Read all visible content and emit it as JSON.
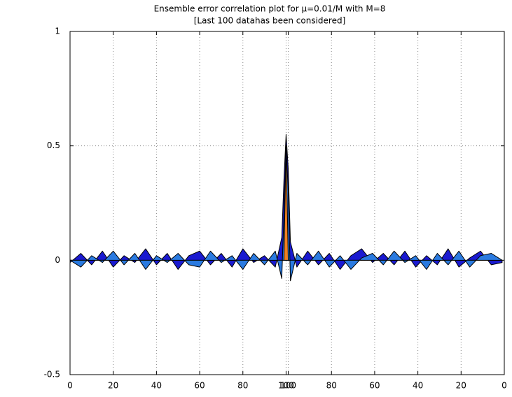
{
  "chart_data": {
    "type": "area",
    "title": "Ensemble error correlation plot for μ=0.01/M with M=8",
    "subtitle": "[Last 100 datahas been considered]",
    "x": [
      0,
      5,
      10,
      15,
      20,
      25,
      30,
      35,
      40,
      45,
      50,
      55,
      60,
      65,
      70,
      75,
      80,
      85,
      90,
      95,
      98,
      99,
      100,
      101,
      102,
      105,
      110,
      115,
      120,
      125,
      130,
      135,
      140,
      145,
      150,
      155,
      160,
      165,
      170,
      175,
      180,
      185,
      190,
      195,
      200
    ],
    "series": [
      {
        "color": "#1a1ad0",
        "values": [
          -0.01,
          0.03,
          -0.02,
          0.04,
          -0.03,
          0.02,
          -0.01,
          0.05,
          -0.02,
          0.03,
          -0.04,
          0.02,
          0.04,
          -0.02,
          0.03,
          -0.03,
          0.05,
          -0.01,
          0.02,
          -0.03,
          0.1,
          0.35,
          0.55,
          0.4,
          0.08,
          -0.03,
          0.04,
          -0.02,
          0.03,
          -0.04,
          0.02,
          0.05,
          -0.01,
          0.03,
          -0.02,
          0.04,
          -0.03,
          0.02,
          -0.02,
          0.05,
          -0.03,
          0.01,
          0.04,
          -0.02,
          -0.01
        ]
      },
      {
        "color": "#2a7ae0",
        "values": [
          0,
          -0.03,
          0.02,
          -0.01,
          0.04,
          -0.02,
          0.03,
          -0.04,
          0.02,
          -0.01,
          0.03,
          -0.02,
          -0.03,
          0.04,
          -0.01,
          0.02,
          -0.04,
          0.03,
          -0.02,
          0.04,
          -0.08,
          0.2,
          0.5,
          0.3,
          -0.09,
          0.03,
          -0.02,
          0.04,
          -0.03,
          0.02,
          -0.04,
          0.01,
          0.03,
          -0.02,
          0.04,
          -0.01,
          0.02,
          -0.04,
          0.03,
          -0.02,
          0.04,
          -0.03,
          0.02,
          0.03,
          0
        ]
      },
      {
        "color": "#f08020",
        "values": [
          null,
          null,
          null,
          null,
          null,
          null,
          null,
          null,
          null,
          null,
          null,
          null,
          null,
          null,
          null,
          null,
          null,
          null,
          null,
          null,
          null,
          0,
          0.5,
          0,
          null,
          null,
          null,
          null,
          null,
          null,
          null,
          null,
          null,
          null,
          null,
          null,
          null,
          null,
          null,
          null,
          null,
          null,
          null,
          null,
          null
        ]
      }
    ],
    "xlim": [
      0,
      201
    ],
    "xticks": [
      0,
      20,
      40,
      60,
      80,
      100,
      {
        "value": 101,
        "label": "100"
      },
      {
        "value": 121,
        "label": "80"
      },
      {
        "value": 141,
        "label": "60"
      },
      {
        "value": 161,
        "label": "40"
      },
      {
        "value": 181,
        "label": "20"
      },
      {
        "value": 201,
        "label": "0"
      }
    ],
    "ylim": [
      -0.5,
      1
    ],
    "yticks": [
      -0.5,
      0,
      0.5,
      1
    ],
    "grid": true
  }
}
